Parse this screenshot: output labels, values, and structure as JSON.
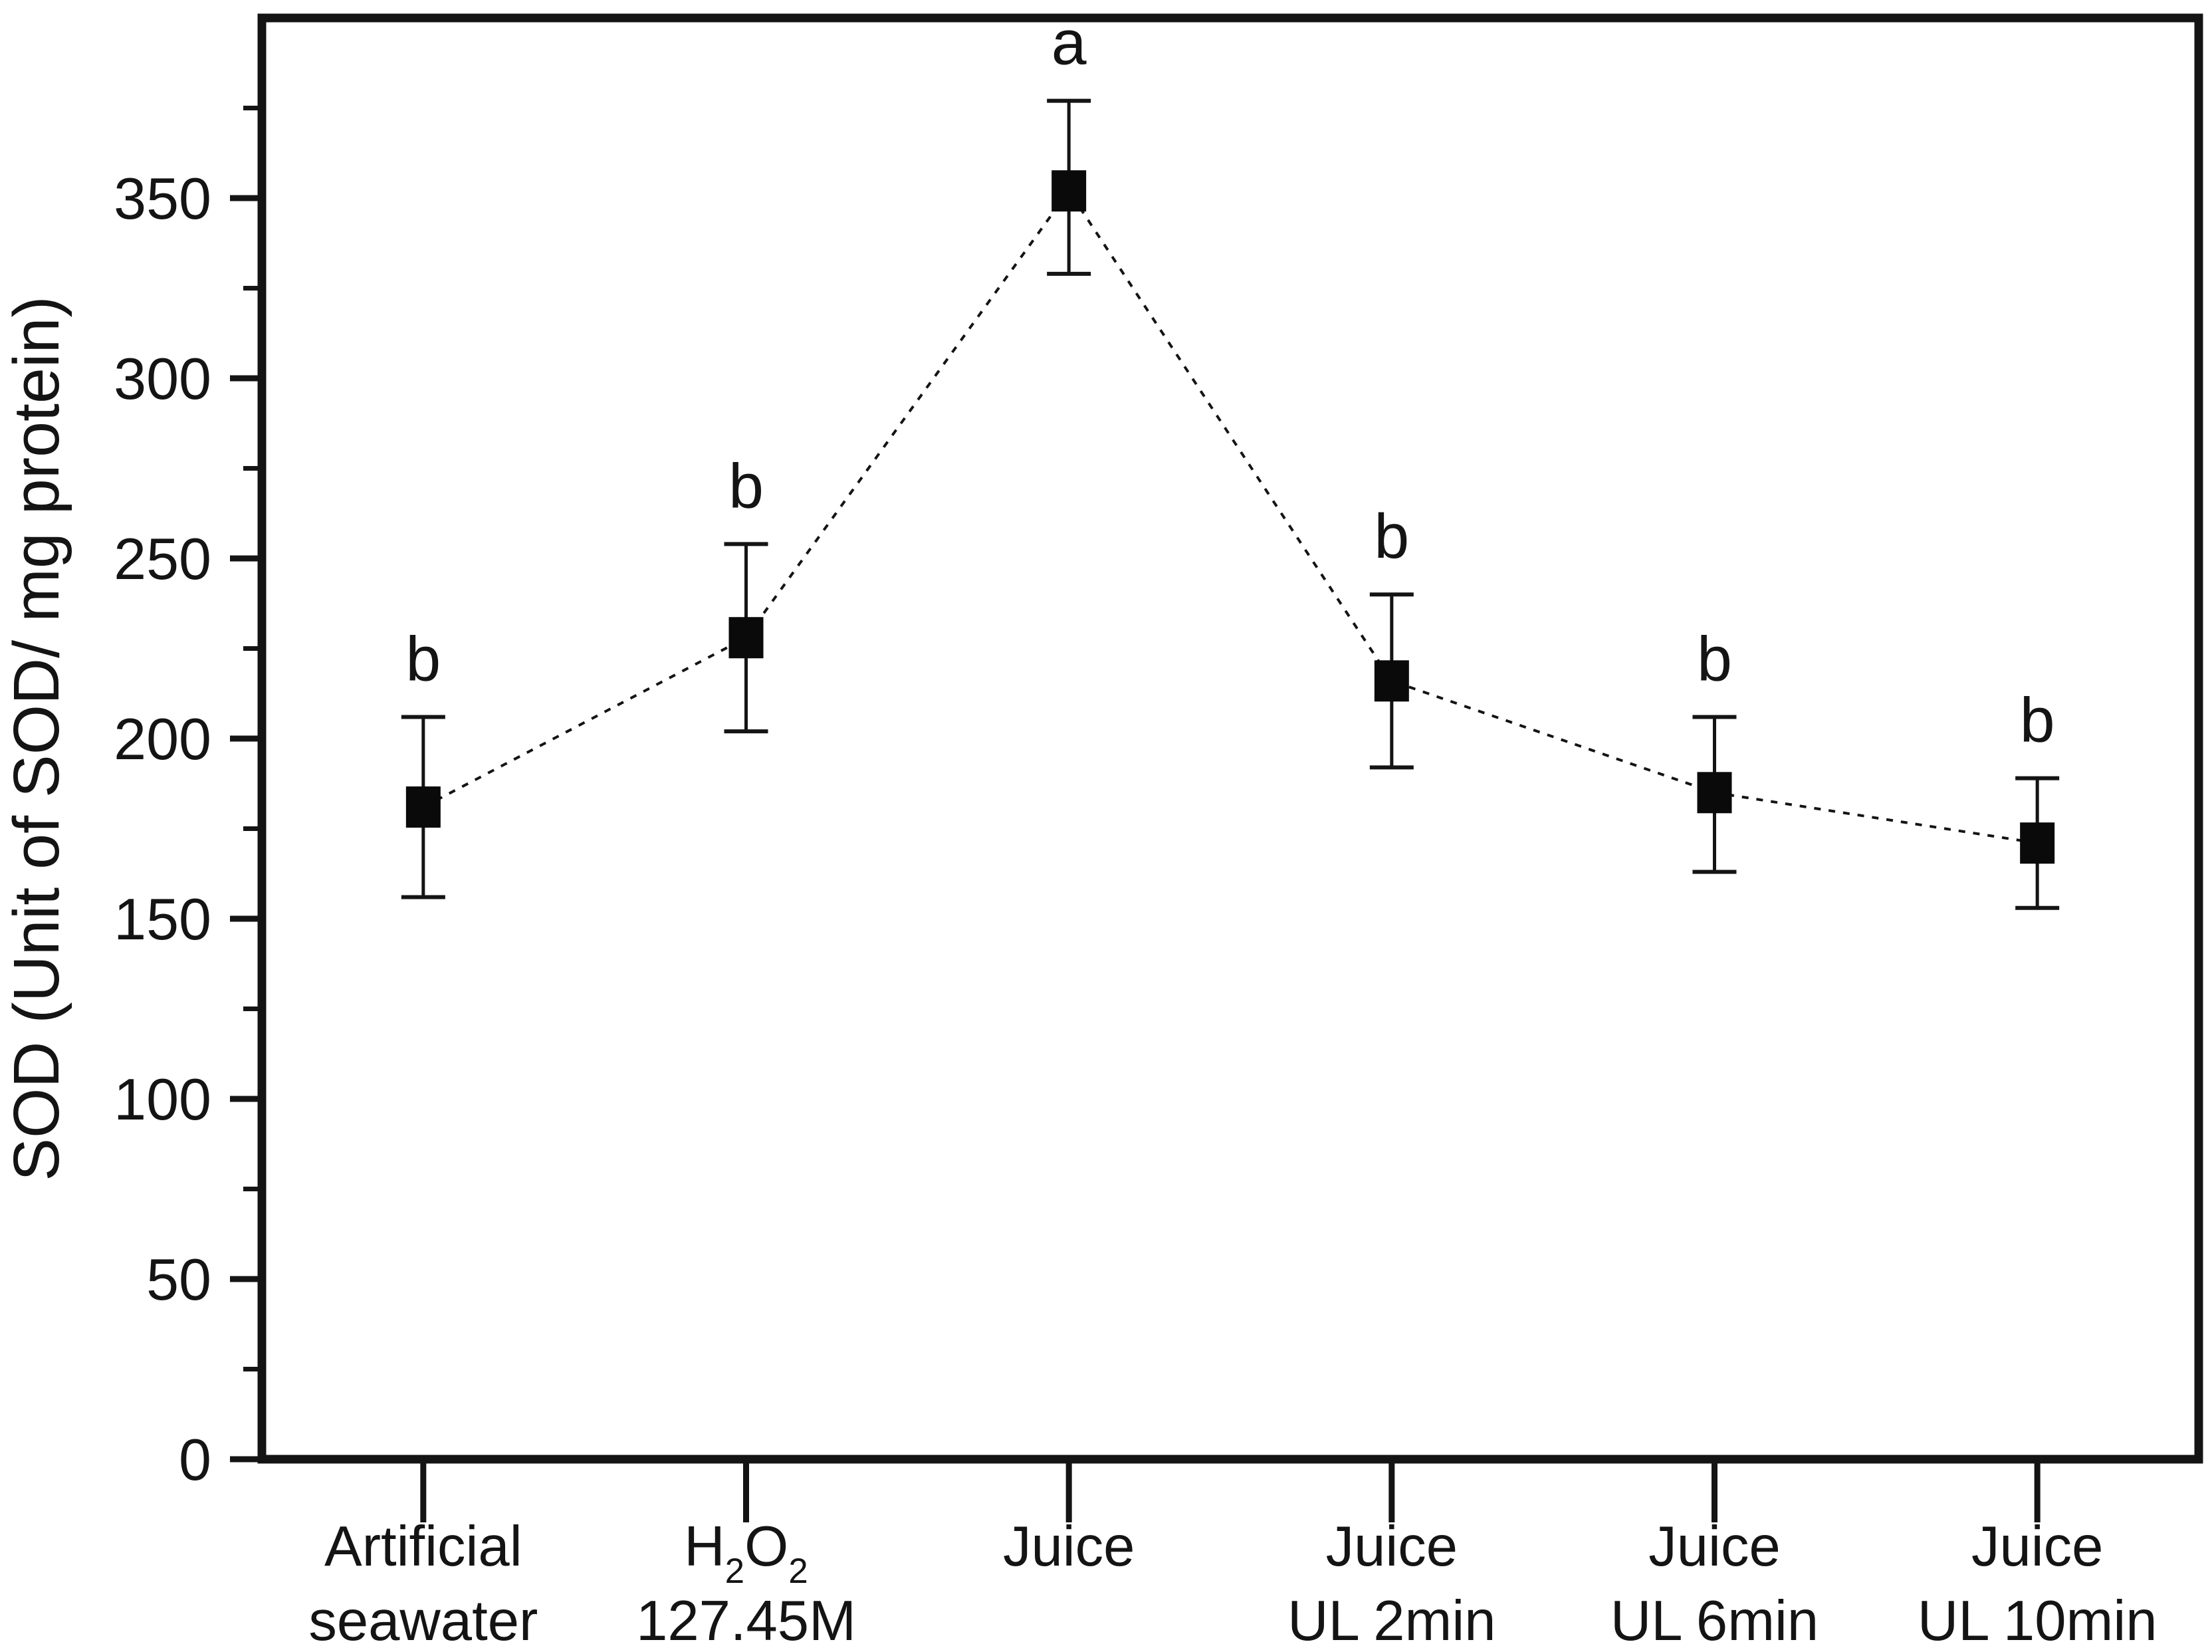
{
  "figure": {
    "background": "#ffffff",
    "ink_color": "#141414",
    "marker_color": "#0a0a0a"
  },
  "chart_data": {
    "type": "line",
    "title": "",
    "xlabel": "",
    "ylabel": "SOD (Unit of SOD/ mg protein)",
    "ylim": [
      0,
      400
    ],
    "y_major_ticks": [
      0,
      50,
      100,
      150,
      200,
      250,
      300,
      350
    ],
    "y_minor_step": 25,
    "grid": false,
    "legend_position": "none",
    "categories": [
      [
        "Artificial",
        "seawater"
      ],
      [
        "H₂O₂",
        "127.45M"
      ],
      [
        "Juice"
      ],
      [
        "Juice",
        "UL 2min"
      ],
      [
        "Juice",
        "UL 6min"
      ],
      [
        "Juice",
        "UL 10min"
      ]
    ],
    "series": [
      {
        "name": "SOD",
        "values": [
          181,
          228,
          352,
          216,
          185,
          171
        ],
        "error_plus": [
          25,
          26,
          25,
          24,
          21,
          18
        ],
        "error_minus": [
          25,
          26,
          23,
          24,
          22,
          18
        ],
        "sig_letters": [
          "b",
          "b",
          "a",
          "b",
          "b",
          "b"
        ],
        "marker": "filled-square",
        "line_style": "dashed",
        "color": "#141414"
      }
    ]
  }
}
